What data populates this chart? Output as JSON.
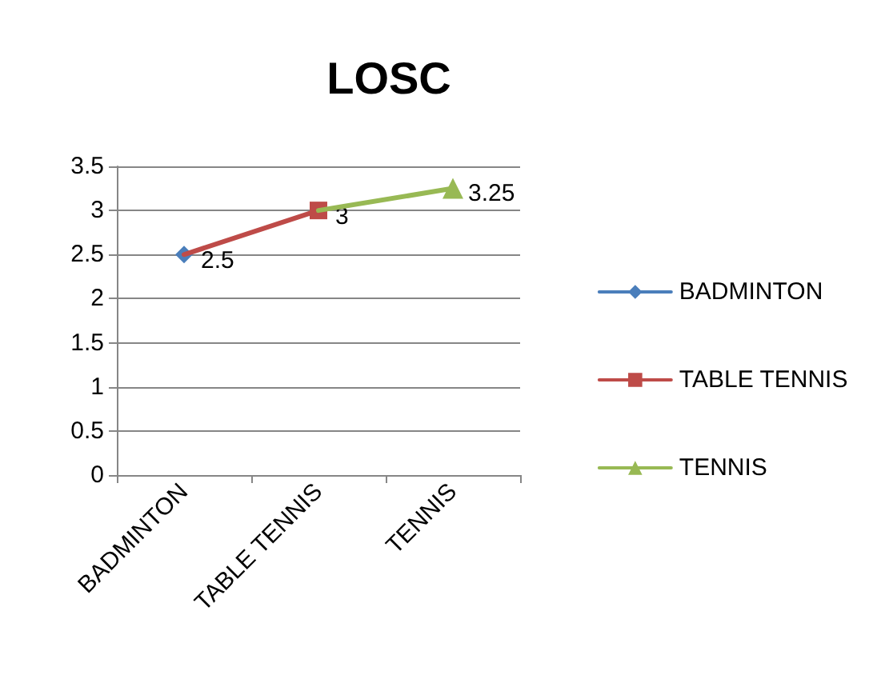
{
  "chart_data": {
    "type": "line",
    "title": "LOSC",
    "categories": [
      "BADMINTON",
      "TABLE TENNIS",
      "TENNIS"
    ],
    "series": [
      {
        "name": "BADMINTON",
        "color": "#4a7ebb",
        "marker": "diamond",
        "values": [
          2.5,
          null,
          null
        ]
      },
      {
        "name": "TABLE TENNIS",
        "color": "#be4b48",
        "marker": "square",
        "values": [
          null,
          3,
          null
        ]
      },
      {
        "name": "TENNIS",
        "color": "#98b954",
        "marker": "triangle",
        "values": [
          null,
          null,
          3.25
        ]
      }
    ],
    "ylim": [
      0,
      3.5
    ],
    "yticks": [
      0,
      0.5,
      1,
      1.5,
      2,
      2.5,
      3,
      3.5
    ],
    "grid": "y",
    "legend": "right",
    "data_labels": true
  }
}
